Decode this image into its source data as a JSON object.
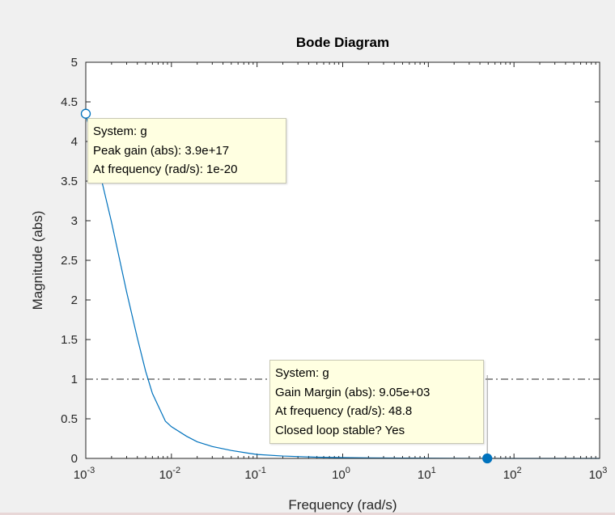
{
  "chart_data": {
    "type": "line",
    "title": "Bode Diagram",
    "xlabel": "Frequency  (rad/s)",
    "ylabel": "Magnitude (abs)",
    "xscale": "log",
    "xlim": [
      0.001,
      1000
    ],
    "ylim": [
      0,
      5
    ],
    "x_ticks": [
      {
        "base": "10",
        "exp": "-3"
      },
      {
        "base": "10",
        "exp": "-2"
      },
      {
        "base": "10",
        "exp": "-1"
      },
      {
        "base": "10",
        "exp": "0"
      },
      {
        "base": "10",
        "exp": "1"
      },
      {
        "base": "10",
        "exp": "2"
      },
      {
        "base": "10",
        "exp": "3"
      }
    ],
    "y_ticks": [
      "0",
      "0.5",
      "1",
      "1.5",
      "2",
      "2.5",
      "3",
      "3.5",
      "4",
      "4.5",
      "5"
    ],
    "grid": false,
    "line_color": "#0072bd",
    "series": [
      {
        "x": [
          0.001,
          0.0015,
          0.002,
          0.003,
          0.004,
          0.005,
          0.006,
          0.0085,
          0.01,
          0.015,
          0.02,
          0.03,
          0.05,
          0.08,
          0.1,
          0.2,
          0.5,
          1,
          2,
          5,
          10,
          20,
          48.8,
          100,
          200,
          500,
          1000
        ],
        "y": [
          4.35,
          3.55,
          2.98,
          2.1,
          1.52,
          1.1,
          0.82,
          0.47,
          0.4,
          0.28,
          0.21,
          0.15,
          0.1,
          0.065,
          0.05,
          0.03,
          0.015,
          0.01,
          0.007,
          0.004,
          0.003,
          0.002,
          0.0005,
          0.0003,
          0.0002,
          0.0001,
          0.0
        ]
      }
    ],
    "reference_line": {
      "y": 1,
      "style": "dash-dot",
      "color": "#262626"
    },
    "markers": [
      {
        "x": 0.001,
        "y": 4.35,
        "style": "open-circle"
      },
      {
        "x": 48.8,
        "y": 0.0,
        "style": "filled-circle"
      }
    ],
    "datatips": [
      {
        "lines": [
          "System: g",
          "Peak gain (abs): 3.9e+17",
          "At frequency (rad/s): 1e-20"
        ]
      },
      {
        "lines": [
          "System: g",
          "Gain Margin (abs): 9.05e+03",
          "At frequency (rad/s): 48.8",
          "Closed loop stable? Yes"
        ]
      }
    ]
  }
}
